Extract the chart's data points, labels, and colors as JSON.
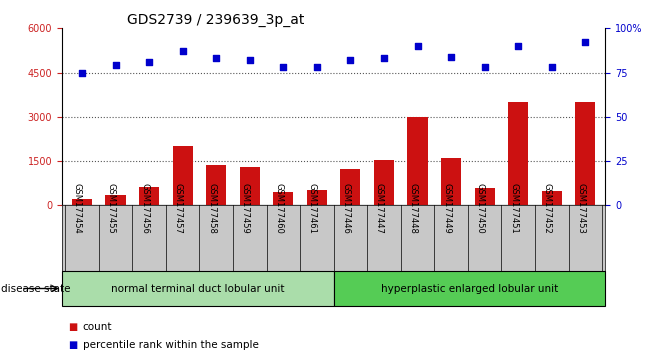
{
  "title": "GDS2739 / 239639_3p_at",
  "categories": [
    "GSM177454",
    "GSM177455",
    "GSM177456",
    "GSM177457",
    "GSM177458",
    "GSM177459",
    "GSM177460",
    "GSM177461",
    "GSM177446",
    "GSM177447",
    "GSM177448",
    "GSM177449",
    "GSM177450",
    "GSM177451",
    "GSM177452",
    "GSM177453"
  ],
  "counts": [
    200,
    350,
    620,
    2000,
    1350,
    1310,
    450,
    510,
    1220,
    1520,
    3000,
    1620,
    580,
    3500,
    490,
    3500
  ],
  "percentiles": [
    75,
    79,
    81,
    87,
    83,
    82,
    78,
    78,
    82,
    83,
    90,
    84,
    78,
    90,
    78,
    92
  ],
  "bar_color": "#cc1111",
  "dot_color": "#0000cc",
  "ylim_left": [
    0,
    6000
  ],
  "ylim_right": [
    0,
    100
  ],
  "yticks_left": [
    0,
    1500,
    3000,
    4500,
    6000
  ],
  "ytick_labels_left": [
    "0",
    "1500",
    "3000",
    "4500",
    "6000"
  ],
  "yticks_right": [
    0,
    25,
    50,
    75,
    100
  ],
  "ytick_labels_right": [
    "0",
    "25",
    "50",
    "75",
    "100%"
  ],
  "group1_label": "normal terminal duct lobular unit",
  "group2_label": "hyperplastic enlarged lobular unit",
  "group1_count": 8,
  "group1_color": "#aaddaa",
  "group2_color": "#55cc55",
  "disease_state_label": "disease state",
  "legend_count_label": "count",
  "legend_percentile_label": "percentile rank within the sample",
  "bg_color": "#ffffff",
  "tick_bg_color": "#c8c8c8",
  "title_fontsize": 10,
  "tick_fontsize": 7,
  "cat_fontsize": 6,
  "axis_label_color_left": "#cc2222",
  "axis_label_color_right": "#0000cc",
  "dotted_line_color": "#555555"
}
